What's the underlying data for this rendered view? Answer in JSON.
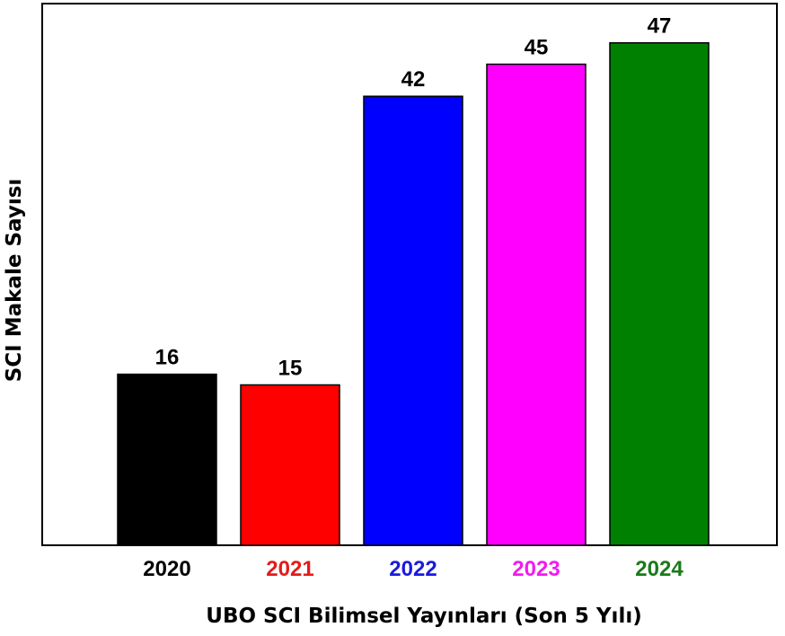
{
  "chart_data": {
    "type": "bar",
    "categories": [
      "2020",
      "2021",
      "2022",
      "2023",
      "2024"
    ],
    "values": [
      16,
      15,
      42,
      45,
      47
    ],
    "bar_colors": [
      "#000000",
      "#ff0000",
      "#0000ff",
      "#ff00ff",
      "#008000"
    ],
    "category_label_colors": [
      "#000000",
      "#e31b1b",
      "#1a1adf",
      "#f21bf2",
      "#1a7a1a"
    ],
    "data_labels": [
      "16",
      "15",
      "42",
      "45",
      "47"
    ],
    "xlabel": "UBO SCI Bilimsel Yayınları (Son 5 Yılı)",
    "ylabel": "SCI Makale Sayısı",
    "ylim": [
      0,
      50
    ],
    "grid": false,
    "legend": "none"
  }
}
